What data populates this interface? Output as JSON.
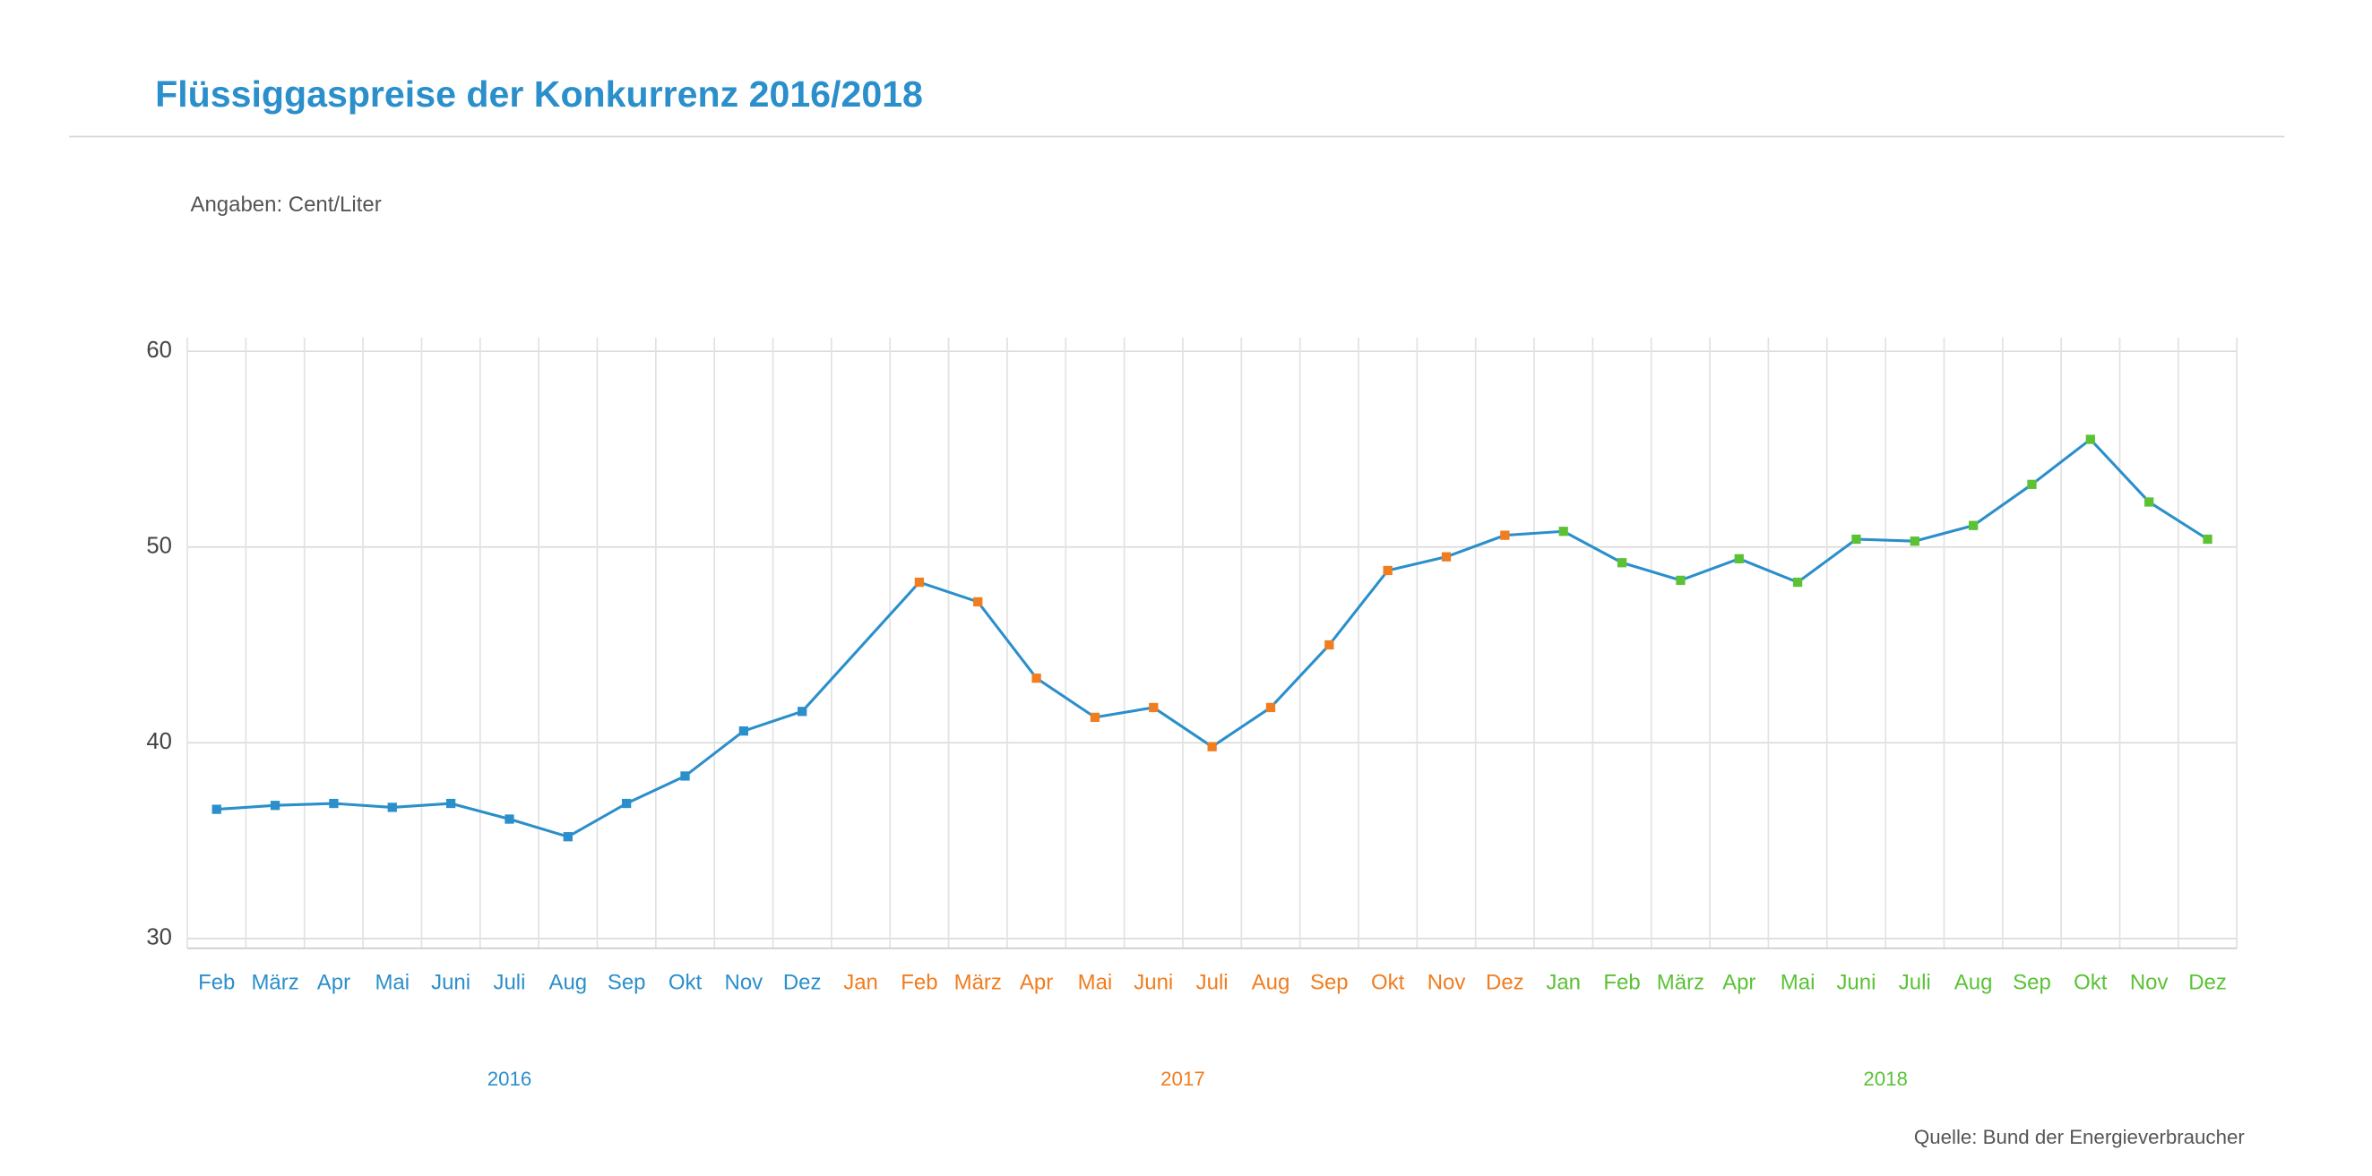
{
  "chart_data": {
    "type": "line",
    "title": "Flüssiggaspreise der Konkurrenz 2016/2018",
    "subtitle": "Angaben: Cent/Liter",
    "source": "Quelle: Bund der Energieverbraucher",
    "line_color": "#2b8fcb",
    "groups": [
      {
        "name": "2016",
        "color": "#2b8fcb",
        "categories": [
          "Feb",
          "März",
          "Apr",
          "Mai",
          "Juni",
          "Juli",
          "Aug",
          "Sep",
          "Okt",
          "Nov",
          "Dez"
        ],
        "values": [
          36.6,
          36.8,
          36.9,
          36.7,
          36.9,
          36.1,
          35.2,
          36.9,
          38.3,
          40.6,
          41.6
        ]
      },
      {
        "name": "2017",
        "color": "#f07d1f",
        "categories": [
          "Jan",
          "Feb",
          "März",
          "Apr",
          "Mai",
          "Juni",
          "Juli",
          "Aug",
          "Sep",
          "Okt",
          "Nov",
          "Dez"
        ],
        "values": [
          null,
          48.2,
          47.2,
          43.3,
          41.3,
          41.8,
          39.8,
          41.8,
          45.0,
          48.8,
          49.5,
          50.6
        ]
      },
      {
        "name": "2018",
        "color": "#5bc236",
        "categories": [
          "Jan",
          "Feb",
          "März",
          "Apr",
          "Mai",
          "Juni",
          "Juli",
          "Aug",
          "Sep",
          "Okt",
          "Nov",
          "Dez"
        ],
        "values": [
          50.8,
          49.2,
          48.3,
          49.4,
          48.2,
          50.4,
          50.3,
          51.1,
          53.2,
          55.5,
          52.3,
          50.4
        ]
      }
    ],
    "ylim": [
      29.5,
      60.7
    ],
    "yticks": [
      30,
      40,
      50,
      60
    ],
    "grid": true
  }
}
